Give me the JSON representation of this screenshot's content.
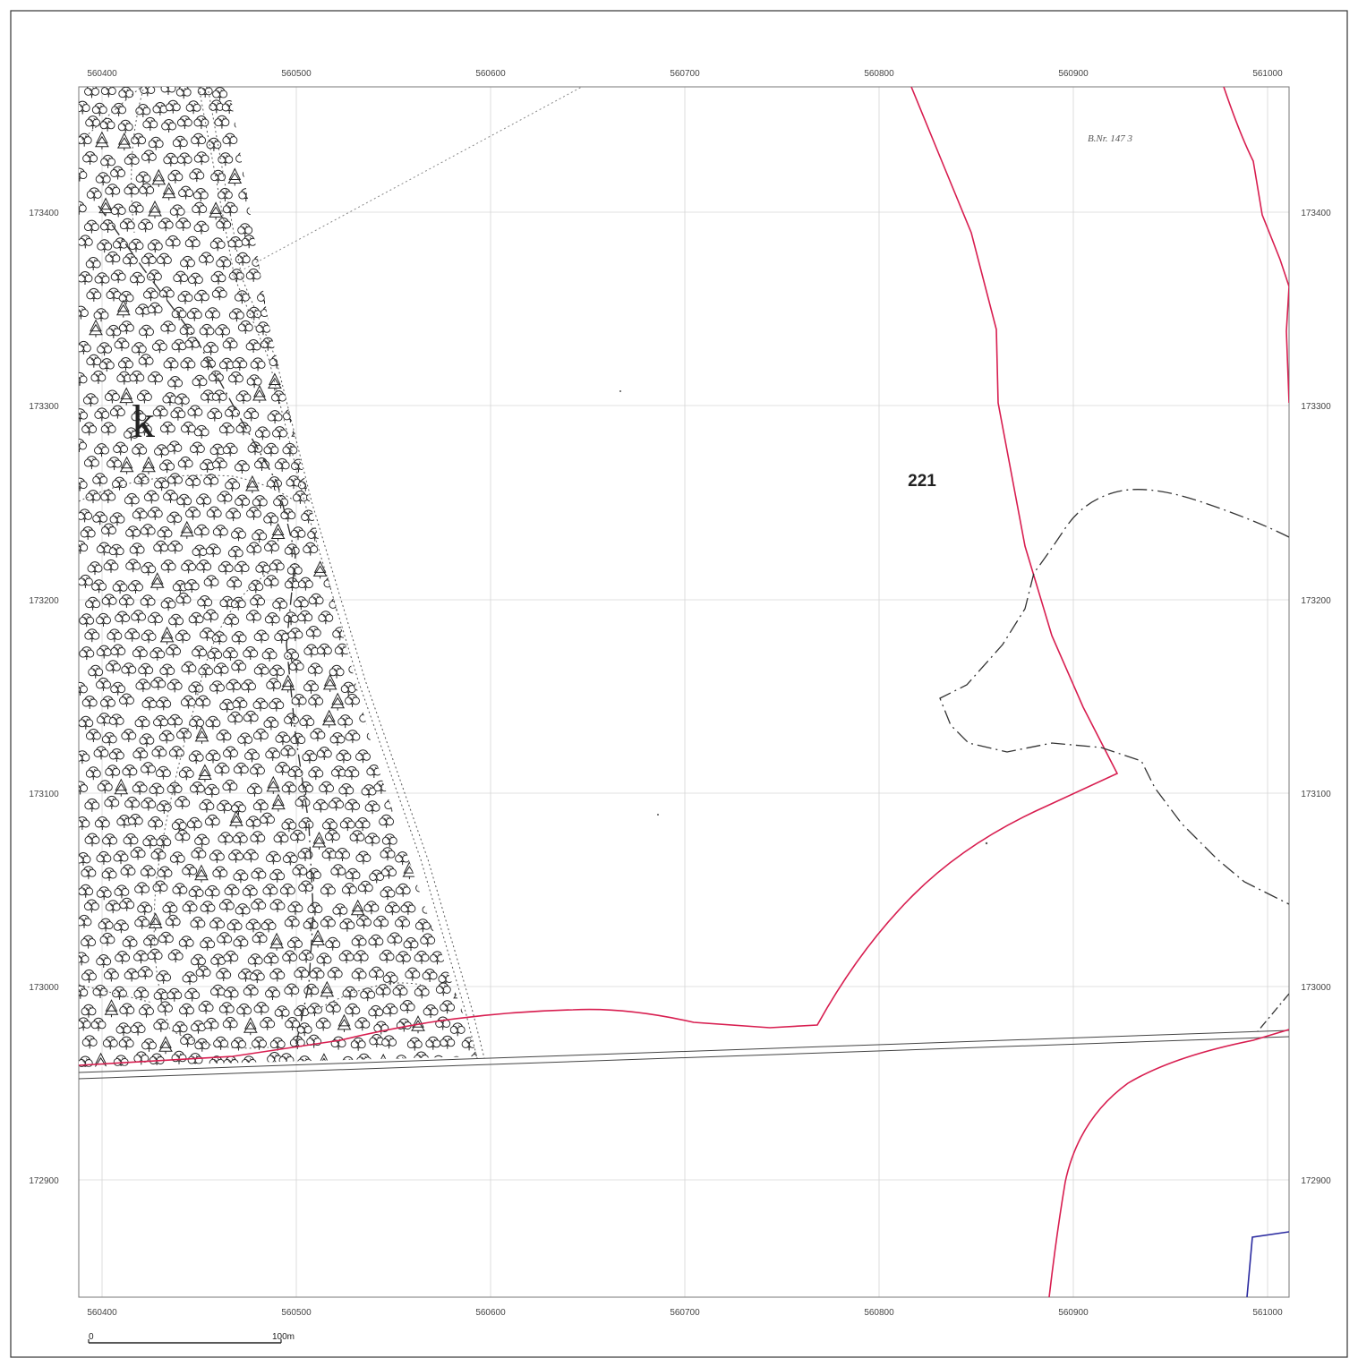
{
  "map": {
    "x_labels": [
      "560400",
      "560500",
      "560600",
      "560700",
      "560800",
      "560900",
      "561000"
    ],
    "y_labels": [
      "173400",
      "173300",
      "173200",
      "173100",
      "173000",
      "172900"
    ],
    "parcel_number": "221",
    "forest_letter": "k",
    "handwritten_note": "B.Nr. 147 3",
    "scale_bar": {
      "start_label": "0",
      "end_label": "100m"
    },
    "colors": {
      "boundary": "#d81e50",
      "blue_line": "#2a2aa0",
      "grid": "#cfcfcf",
      "ink": "#222222"
    }
  }
}
